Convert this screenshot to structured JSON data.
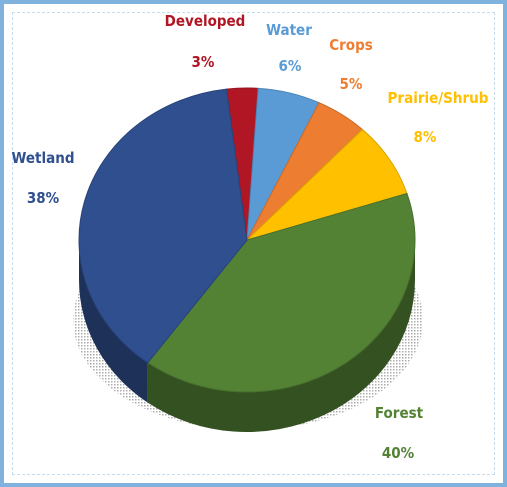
{
  "chart_data": {
    "type": "pie",
    "title": "",
    "style": "3d",
    "slices": [
      {
        "label": "Developed",
        "value": 3,
        "value_label": "3%",
        "color": "#b01623"
      },
      {
        "label": "Water",
        "value": 6,
        "value_label": "6%",
        "color": "#5b9bd5"
      },
      {
        "label": "Crops",
        "value": 5,
        "value_label": "5%",
        "color": "#ed7d31"
      },
      {
        "label": "Prairie/Shrub",
        "value": 8,
        "value_label": "8%",
        "color": "#ffc000"
      },
      {
        "label": "Forest",
        "value": 40,
        "value_label": "40%",
        "color": "#548235"
      },
      {
        "label": "Wetland",
        "value": 38,
        "value_label": "38%",
        "color": "#2f4f8f"
      }
    ]
  }
}
